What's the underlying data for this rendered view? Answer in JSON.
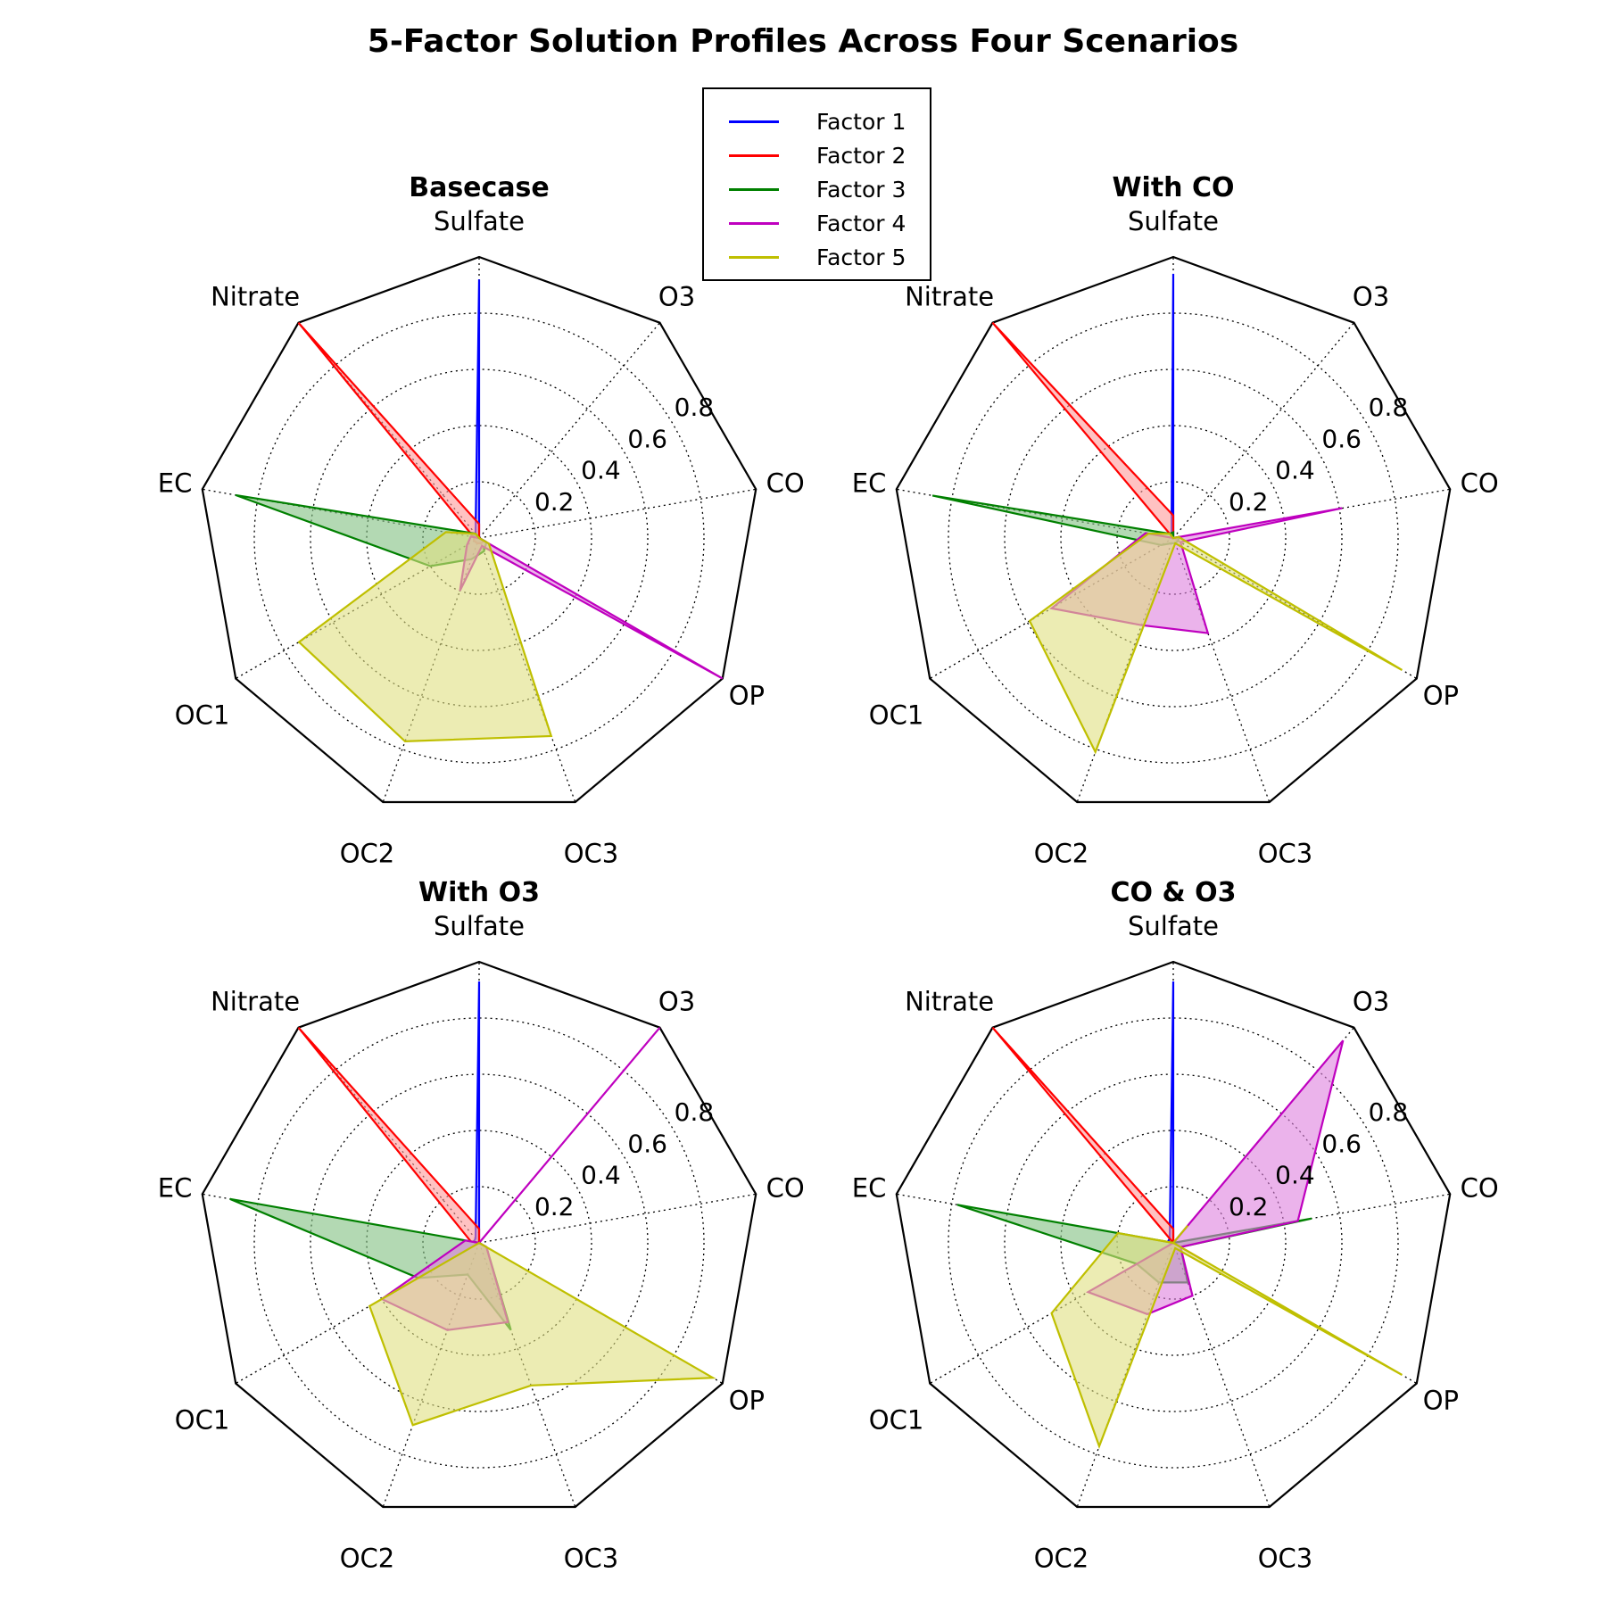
{
  "title": "5-Factor Solution Profiles Across Four Scenarios",
  "chart_data": {
    "type": "radar",
    "axes": [
      "Sulfate",
      "O3",
      "CO",
      "OP",
      "OC3",
      "OC2",
      "OC1",
      "EC",
      "Nitrate"
    ],
    "radial_ticks": [
      "0.2",
      "0.4",
      "0.6",
      "0.8"
    ],
    "rmax": 1.0,
    "grid": true,
    "legend_position": "top-center",
    "series_names": [
      "Factor 1",
      "Factor 2",
      "Factor 3",
      "Factor 4",
      "Factor 5"
    ],
    "colors": [
      "#0000ff",
      "#ff0000",
      "#008000",
      "#bf00bf",
      "#bfbf00"
    ],
    "fill_colors": [
      "#9999ff",
      "#ff9999",
      "#80c080",
      "#dd80dd",
      "#e0e080"
    ],
    "panels": [
      {
        "title": "Basecase",
        "series": [
          {
            "name": "Factor 1",
            "values": [
              0.92,
              0.0,
              0.0,
              0.02,
              0.02,
              0.02,
              0.02,
              0.02,
              0.02
            ]
          },
          {
            "name": "Factor 2",
            "values": [
              0.05,
              0.0,
              0.0,
              0.02,
              0.02,
              0.02,
              0.02,
              0.02,
              1.0
            ]
          },
          {
            "name": "Factor 3",
            "values": [
              0.0,
              0.0,
              0.0,
              0.03,
              0.05,
              0.08,
              0.2,
              0.88,
              0.02
            ]
          },
          {
            "name": "Factor 4",
            "values": [
              0.0,
              0.0,
              0.0,
              1.0,
              0.03,
              0.2,
              0.05,
              0.03,
              0.0
            ]
          },
          {
            "name": "Factor 5",
            "values": [
              0.0,
              0.0,
              0.0,
              0.04,
              0.75,
              0.77,
              0.74,
              0.12,
              0.02
            ]
          }
        ]
      },
      {
        "title": "With CO",
        "series": [
          {
            "name": "Factor 1",
            "values": [
              0.94,
              0.0,
              0.0,
              0.0,
              0.0,
              0.0,
              0.0,
              0.01,
              0.01
            ]
          },
          {
            "name": "Factor 2",
            "values": [
              0.08,
              0.0,
              0.02,
              0.02,
              0.0,
              0.0,
              0.0,
              0.0,
              1.0
            ]
          },
          {
            "name": "Factor 3",
            "values": [
              0.02,
              0.0,
              0.02,
              0.02,
              0.02,
              0.02,
              0.05,
              0.87,
              0.02
            ]
          },
          {
            "name": "Factor 4",
            "values": [
              0.0,
              0.0,
              0.61,
              0.03,
              0.36,
              0.33,
              0.5,
              0.1,
              0.0
            ]
          },
          {
            "name": "Factor 5",
            "values": [
              0.0,
              0.0,
              0.02,
              0.94,
              0.02,
              0.81,
              0.59,
              0.09,
              0.02
            ]
          }
        ]
      },
      {
        "title": "With O3",
        "series": [
          {
            "name": "Factor 1",
            "values": [
              0.93,
              0.0,
              0.0,
              0.01,
              0.0,
              0.0,
              0.0,
              0.02,
              0.02
            ]
          },
          {
            "name": "Factor 2",
            "values": [
              0.05,
              0.0,
              0.0,
              0.03,
              0.0,
              0.0,
              0.0,
              0.03,
              1.0
            ]
          },
          {
            "name": "Factor 3",
            "values": [
              0.0,
              0.0,
              0.0,
              0.03,
              0.33,
              0.12,
              0.25,
              0.9,
              0.0
            ]
          },
          {
            "name": "Factor 4",
            "values": [
              0.0,
              1.0,
              0.0,
              0.03,
              0.3,
              0.33,
              0.4,
              0.05,
              0.0
            ]
          },
          {
            "name": "Factor 5",
            "values": [
              0.0,
              0.0,
              0.0,
              0.96,
              0.54,
              0.69,
              0.45,
              0.0,
              0.0
            ]
          }
        ]
      },
      {
        "title": "CO & O3",
        "series": [
          {
            "name": "Factor 1",
            "values": [
              0.93,
              0.0,
              0.0,
              0.0,
              0.0,
              0.0,
              0.0,
              0.02,
              0.02
            ]
          },
          {
            "name": "Factor 2",
            "values": [
              0.05,
              0.0,
              0.0,
              0.12,
              0.0,
              0.0,
              0.0,
              0.0,
              1.0
            ]
          },
          {
            "name": "Factor 3",
            "values": [
              0.0,
              0.0,
              0.5,
              0.03,
              0.15,
              0.15,
              0.15,
              0.78,
              0.0
            ]
          },
          {
            "name": "Factor 4",
            "values": [
              0.0,
              0.94,
              0.45,
              0.03,
              0.2,
              0.27,
              0.35,
              0.0,
              0.0
            ]
          },
          {
            "name": "Factor 5",
            "values": [
              0.0,
              0.08,
              0.0,
              0.94,
              0.02,
              0.77,
              0.5,
              0.2,
              0.0
            ]
          }
        ]
      }
    ]
  }
}
